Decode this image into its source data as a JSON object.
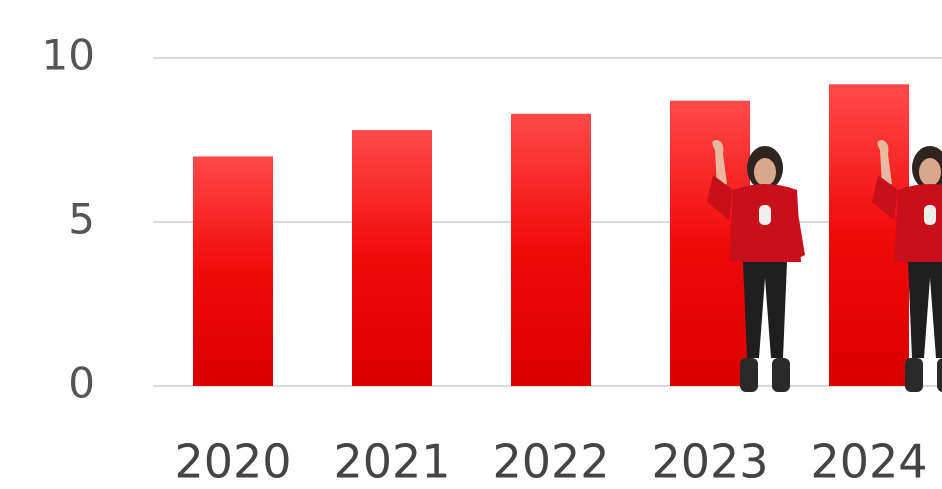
{
  "chart_data": {
    "type": "bar",
    "categories": [
      "2020",
      "2021",
      "2022",
      "2023",
      "2024"
    ],
    "values": [
      7.0,
      7.8,
      8.3,
      8.7,
      9.2
    ],
    "color": "#f00a0a",
    "ylim": [
      0,
      10
    ],
    "yticks": [
      0,
      5,
      10
    ],
    "grid": true
  }
}
